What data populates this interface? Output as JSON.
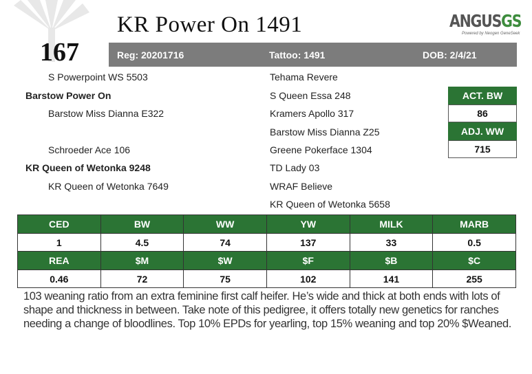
{
  "lot_number": "167",
  "title": "KR Power On 1491",
  "logo": {
    "main": "ANGUS",
    "suffix": "GS",
    "tagline": "Powered by Neogen GeneSeek"
  },
  "info_bar": {
    "reg": "Reg: 20201716",
    "tattoo": "Tattoo: 1491",
    "dob": "DOB: 2/4/21"
  },
  "pedigree": {
    "sire_sire": "S Powerpoint WS 5503",
    "sire": "Barstow Power On",
    "sire_dam": "Barstow Miss Dianna E322",
    "dam_sire": "Schroeder Ace 106",
    "dam": "KR Queen of Wetonka 9248",
    "dam_dam": "KR Queen of Wetonka 7649",
    "col2": [
      "Tehama Revere",
      "S Queen Essa 248",
      "Kramers Apollo 317",
      "Barstow Miss Dianna Z25",
      "Greene Pokerface 1304",
      "TD Lady 03",
      "WRAF Believe",
      "KR Queen of Wetonka 5658"
    ]
  },
  "stats": {
    "act_bw_label": "ACT. BW",
    "act_bw_value": "86",
    "adj_ww_label": "ADJ. WW",
    "adj_ww_value": "715"
  },
  "epds": {
    "row1_headers": [
      "CED",
      "BW",
      "WW",
      "YW",
      "MILK",
      "MARB"
    ],
    "row1_values": [
      "1",
      "4.5",
      "74",
      "137",
      "33",
      "0.5"
    ],
    "row2_headers": [
      "REA",
      "$M",
      "$W",
      "$F",
      "$B",
      "$C"
    ],
    "row2_values": [
      "0.46",
      "72",
      "75",
      "102",
      "141",
      "255"
    ]
  },
  "description": "103 weaning ratio from an extra feminine first calf heifer. He’s wide and thick at both ends with lots of shape and thickness in between.  Take note of this pedigree, it offers totally new genetics for ranches needing a change of bloodlines. Top 10% EPDs for yearling, top 15% weaning and top 20% $Weaned.",
  "colors": {
    "green": "#2b7434",
    "gray_bar": "#7c7c7c"
  }
}
